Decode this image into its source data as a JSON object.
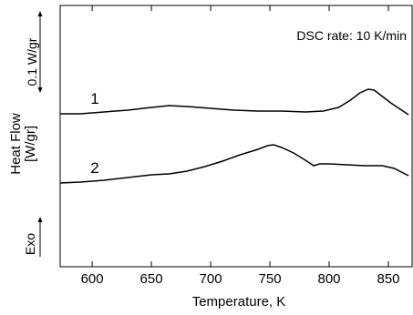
{
  "chart_data": {
    "type": "line",
    "xlabel": "Temperature, K",
    "ylabel_lines": [
      "Heat Flow",
      "[W/gr]"
    ],
    "annotation": "DSC rate: 10 K/min",
    "scale_label": "0.1 W/gr",
    "exo_label": "Exo",
    "xlim": [
      573,
      870
    ],
    "x_ticks": [
      600,
      650,
      700,
      750,
      800,
      850
    ],
    "y_ticks_visible": false,
    "series": [
      {
        "label": "1",
        "points": [
          [
            573,
            125
          ],
          [
            590,
            125
          ],
          [
            610,
            123
          ],
          [
            630,
            121
          ],
          [
            650,
            118
          ],
          [
            665,
            116
          ],
          [
            680,
            117
          ],
          [
            700,
            119
          ],
          [
            720,
            121
          ],
          [
            740,
            122
          ],
          [
            760,
            122
          ],
          [
            780,
            123
          ],
          [
            795,
            122
          ],
          [
            808,
            118
          ],
          [
            818,
            110
          ],
          [
            826,
            102
          ],
          [
            833,
            98
          ],
          [
            838,
            99
          ],
          [
            845,
            106
          ],
          [
            852,
            113
          ],
          [
            860,
            120
          ],
          [
            867,
            126
          ]
        ]
      },
      {
        "label": "2",
        "points": [
          [
            573,
            201
          ],
          [
            590,
            200
          ],
          [
            610,
            198
          ],
          [
            630,
            195
          ],
          [
            650,
            192
          ],
          [
            665,
            191
          ],
          [
            680,
            188
          ],
          [
            695,
            183
          ],
          [
            710,
            177
          ],
          [
            725,
            170
          ],
          [
            740,
            164
          ],
          [
            748,
            160
          ],
          [
            753,
            159
          ],
          [
            760,
            162
          ],
          [
            770,
            168
          ],
          [
            780,
            176
          ],
          [
            787,
            182
          ],
          [
            792,
            180
          ],
          [
            800,
            180
          ],
          [
            815,
            181
          ],
          [
            830,
            182
          ],
          [
            845,
            182
          ],
          [
            855,
            185
          ],
          [
            867,
            193
          ]
        ]
      }
    ]
  }
}
